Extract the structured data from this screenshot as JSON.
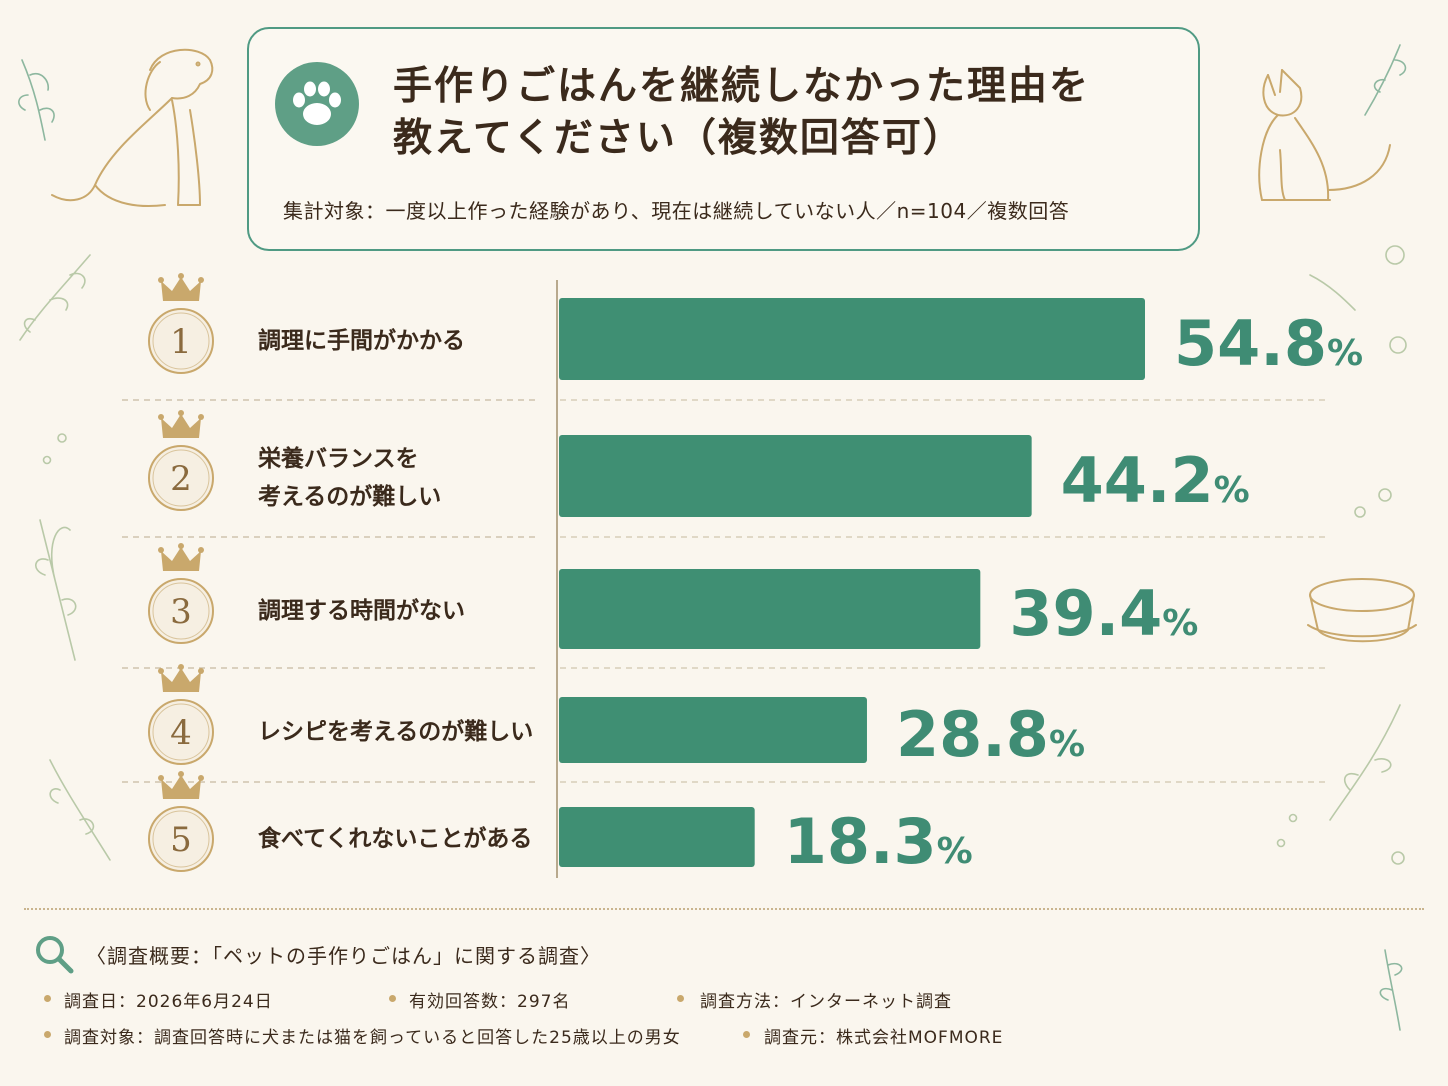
{
  "header": {
    "title_line1": "手作りごはんを継続しなかった理由を",
    "title_line2": "教えてください（複数回答可）",
    "subtitle": "集計対象：一度以上作った経験があり、現在は継続していない人／n=104／複数回答",
    "icon": "paw-icon"
  },
  "chart_data": {
    "type": "bar",
    "orientation": "horizontal",
    "title": "手作りごはんを継続しなかった理由を教えてください（複数回答可）",
    "ranks": [
      "1",
      "2",
      "3",
      "4",
      "5"
    ],
    "categories": [
      [
        "調理に手間がかかる"
      ],
      [
        "栄養バランスを",
        "考えるのが難しい"
      ],
      [
        "調理する時間がない"
      ],
      [
        "レシピを考えるのが難しい"
      ],
      [
        "食べてくれないことがある"
      ]
    ],
    "values": [
      54.8,
      44.2,
      39.4,
      28.8,
      18.3
    ],
    "value_labels": [
      "54.8",
      "44.2",
      "39.4",
      "28.8",
      "18.3"
    ],
    "unit": "%",
    "bar_color": "#3f8f73",
    "label_color": "#3f8c74",
    "grid": false
  },
  "footer": {
    "survey_title": "〈調査概要：「ペットの手作りごはん」に関する調査〉",
    "items": [
      "調査日：2026年6月24日",
      "有効回答数：297名",
      "調査方法：インターネット調査",
      "調査対象：調査回答時に犬または猫を飼っていると回答した25歳以上の男女",
      "調査元：株式会社MOFMORE"
    ]
  },
  "colors": {
    "background": "#faf6ee",
    "accent": "#4f9a83",
    "gold": "#c9a86c"
  }
}
